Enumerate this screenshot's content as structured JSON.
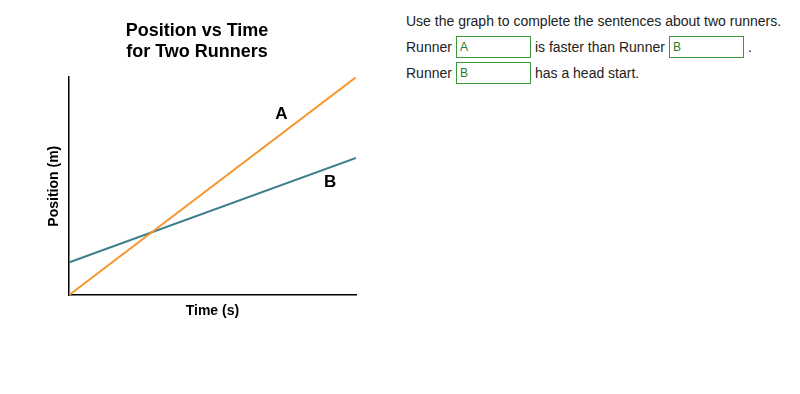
{
  "chart_data": {
    "type": "line",
    "title": [
      "Position vs Time",
      "for Two Runners"
    ],
    "x_label": "Time (s)",
    "y_label": "Position (m)",
    "xlim": [
      0,
      10
    ],
    "ylim": [
      0,
      10
    ],
    "tick_labels": false,
    "grid": false,
    "x": [
      0,
      10
    ],
    "series": [
      {
        "name": "A",
        "color": "#f5962e",
        "values": [
          0,
          10
        ]
      },
      {
        "name": "B",
        "color": "#3d7f8c",
        "values": [
          1.5,
          6.3
        ]
      }
    ],
    "annotations": [
      {
        "text": "A",
        "x": 7.4,
        "y": 8.3
      },
      {
        "text": "B",
        "x": 9.1,
        "y": 5.2
      }
    ]
  },
  "worksheet": {
    "instruction": "Use the graph to complete the sentences about two runners.",
    "sentences": [
      [
        {
          "text": "Runner"
        },
        {
          "box": "A"
        },
        {
          "text": "is faster than Runner"
        },
        {
          "box": "B"
        },
        {
          "text": "."
        }
      ],
      [
        {
          "text": "Runner"
        },
        {
          "box": "B"
        },
        {
          "text": "has a head start."
        }
      ]
    ]
  }
}
